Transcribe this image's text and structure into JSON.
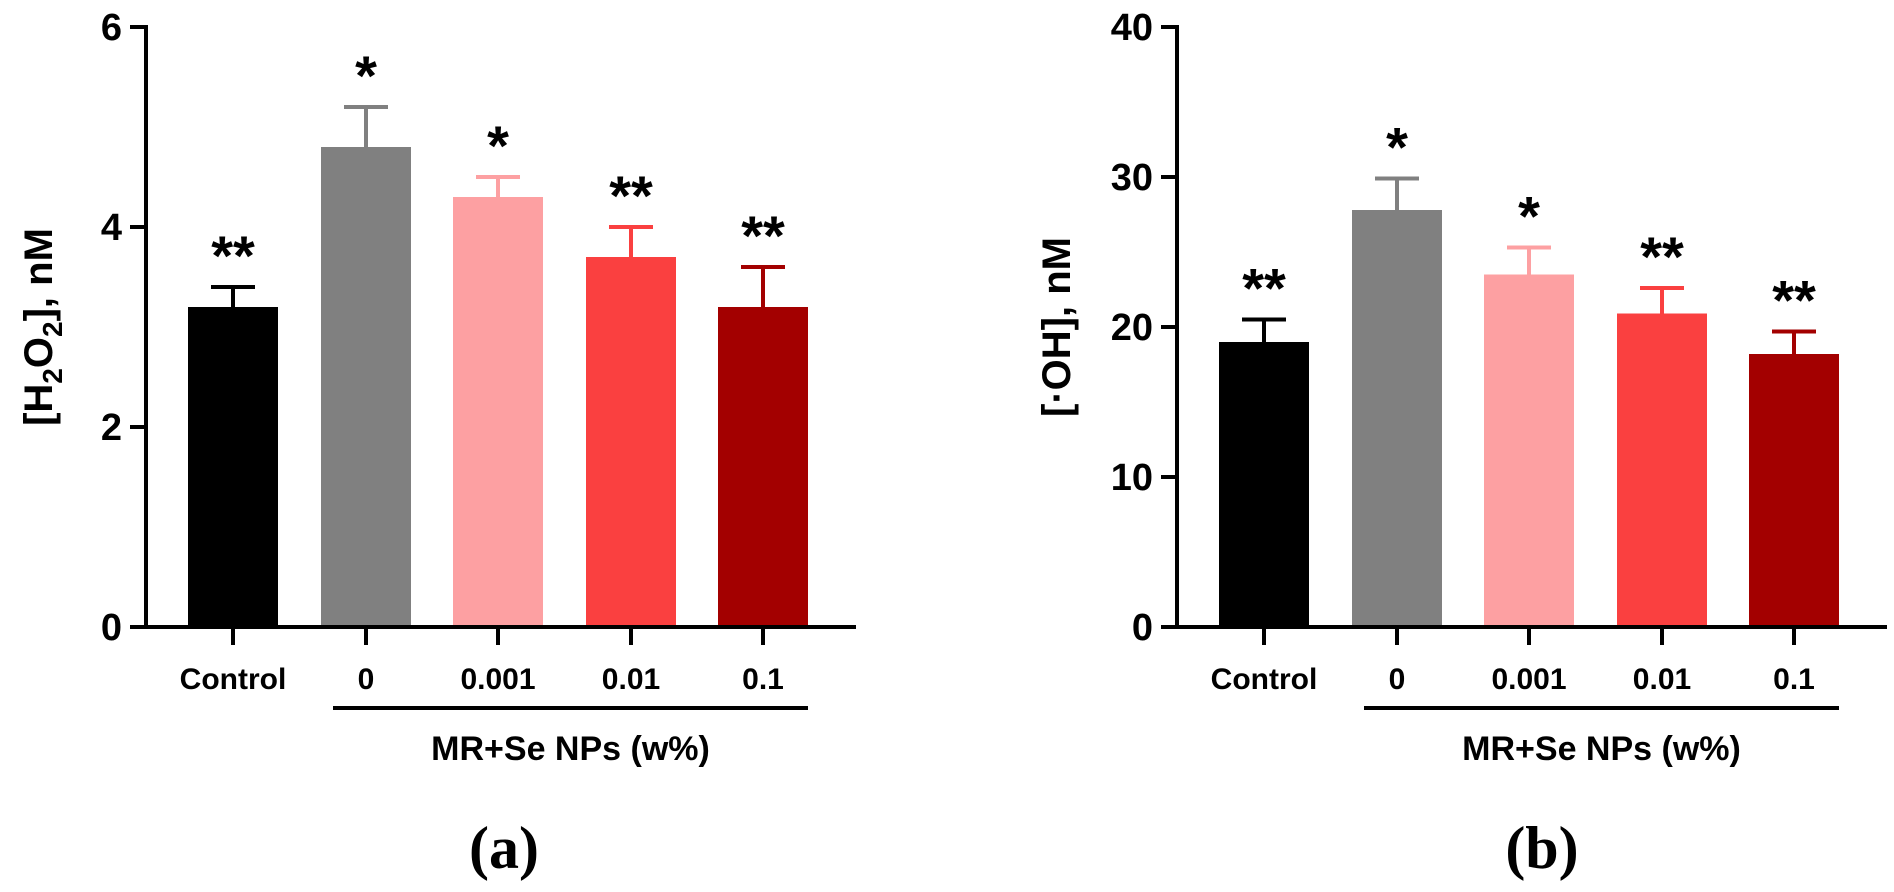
{
  "chart_data": [
    {
      "type": "bar",
      "panel_label": "(a)",
      "categories": [
        "Control",
        "0",
        "0.001",
        "0.01",
        "0.1"
      ],
      "values": [
        3.2,
        4.8,
        4.3,
        3.7,
        3.2
      ],
      "errors": [
        0.2,
        0.4,
        0.2,
        0.3,
        0.4
      ],
      "significance": [
        "**",
        "*",
        "*",
        "**",
        "**"
      ],
      "colors": [
        "#000000",
        "#808080",
        "#fda0a2",
        "#fa4040",
        "#a30000"
      ],
      "ylabel_parts": [
        "[H",
        "2",
        "O",
        "2",
        "], nM"
      ],
      "ylim": [
        0,
        6
      ],
      "yticks": [
        0,
        2,
        4,
        6
      ],
      "group_label": "MR+Se NPs (w%)"
    },
    {
      "type": "bar",
      "panel_label": "(b)",
      "categories": [
        "Control",
        "0",
        "0.001",
        "0.01",
        "0.1"
      ],
      "values": [
        19,
        27.8,
        23.5,
        20.9,
        18.2
      ],
      "errors": [
        1.5,
        2.1,
        1.8,
        1.7,
        1.5
      ],
      "significance": [
        "**",
        "*",
        "*",
        "**",
        "**"
      ],
      "colors": [
        "#000000",
        "#808080",
        "#fda0a2",
        "#fa4040",
        "#a30000"
      ],
      "ylabel_parts": [
        "[·OH], nM"
      ],
      "ylim": [
        0,
        40
      ],
      "yticks": [
        0,
        10,
        20,
        30,
        40
      ],
      "group_label": "MR+Se NPs (w%)"
    }
  ]
}
